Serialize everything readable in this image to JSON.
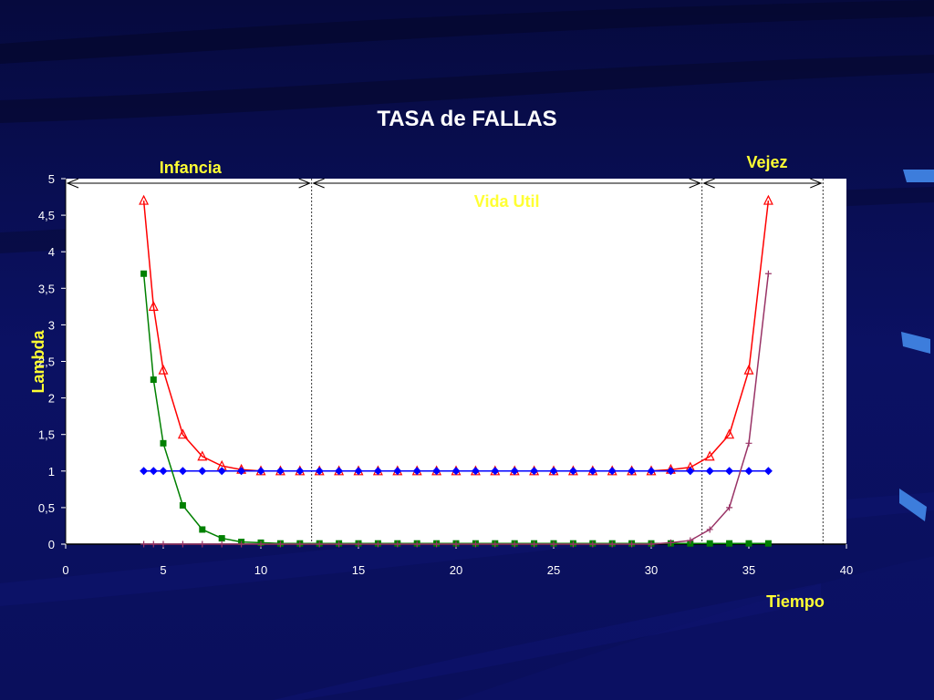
{
  "colors": {
    "background": "#0a0f5c",
    "plot_area": "#ffffff",
    "title": "#ffffff",
    "labels": "#ffff33",
    "series_total": "#ff0000",
    "series_constant": "#0000ff",
    "series_infancy": "#008000",
    "series_aging": "#993366"
  },
  "chart_data": {
    "type": "line",
    "title": "TASA de FALLAS",
    "xlabel": "Tiempo",
    "ylabel": "Lambda",
    "xlim": [
      0,
      40
    ],
    "ylim": [
      0,
      5
    ],
    "xticks": [
      0,
      5,
      10,
      15,
      20,
      25,
      30,
      35,
      40
    ],
    "xtick_labels": [
      "0",
      "5",
      "10",
      "15",
      "20",
      "25",
      "30",
      "35",
      "40"
    ],
    "yticks": [
      0,
      0.5,
      1,
      1.5,
      2,
      2.5,
      3,
      3.5,
      4,
      4.5,
      5
    ],
    "ytick_labels": [
      "0",
      "0,5",
      "1",
      "1,5",
      "2",
      "2,5",
      "3",
      "3,5",
      "4",
      "4,5",
      "5"
    ],
    "grid": false,
    "regions": [
      {
        "label": "Infancia",
        "from": 0,
        "to": 12.6
      },
      {
        "label": "Vida Util",
        "from": 12.6,
        "to": 32.6
      },
      {
        "label": "Vejez",
        "from": 32.6,
        "to": 38.8
      }
    ],
    "series": [
      {
        "marker": "triangle",
        "color": "#ff0000",
        "x": [
          4,
          4.5,
          5,
          6,
          7,
          8,
          9,
          10,
          11,
          12,
          13,
          14,
          15,
          16,
          17,
          18,
          19,
          20,
          21,
          22,
          23,
          24,
          25,
          26,
          27,
          28,
          29,
          30,
          31,
          32,
          33,
          34,
          35,
          36
        ],
        "y": [
          4.7,
          3.25,
          2.38,
          1.5,
          1.2,
          1.07,
          1.02,
          1.0,
          1.0,
          1.0,
          1.0,
          1.0,
          1.0,
          1.0,
          1.0,
          1.0,
          1.0,
          1.0,
          1.0,
          1.0,
          1.0,
          1.0,
          1.0,
          1.0,
          1.0,
          1.0,
          1.0,
          1.0,
          1.02,
          1.05,
          1.2,
          1.5,
          2.38,
          4.7
        ]
      },
      {
        "marker": "diamond",
        "color": "#0000ff",
        "x": [
          4,
          4.5,
          5,
          6,
          7,
          8,
          9,
          10,
          11,
          12,
          13,
          14,
          15,
          16,
          17,
          18,
          19,
          20,
          21,
          22,
          23,
          24,
          25,
          26,
          27,
          28,
          29,
          30,
          31,
          32,
          33,
          34,
          35,
          36
        ],
        "y": [
          1,
          1,
          1,
          1,
          1,
          1,
          1,
          1,
          1,
          1,
          1,
          1,
          1,
          1,
          1,
          1,
          1,
          1,
          1,
          1,
          1,
          1,
          1,
          1,
          1,
          1,
          1,
          1,
          1,
          1,
          1,
          1,
          1,
          1
        ]
      },
      {
        "marker": "square",
        "color": "#008000",
        "x": [
          4,
          4.5,
          5,
          6,
          7,
          8,
          9,
          10,
          11,
          12,
          13,
          14,
          15,
          16,
          17,
          18,
          19,
          20,
          21,
          22,
          23,
          24,
          25,
          26,
          27,
          28,
          29,
          30,
          31,
          32,
          33,
          34,
          35,
          36
        ],
        "y": [
          3.7,
          2.25,
          1.38,
          0.53,
          0.2,
          0.08,
          0.03,
          0.02,
          0.01,
          0.01,
          0.01,
          0.01,
          0.01,
          0.01,
          0.01,
          0.01,
          0.01,
          0.01,
          0.01,
          0.01,
          0.01,
          0.01,
          0.01,
          0.01,
          0.01,
          0.01,
          0.01,
          0.01,
          0.01,
          0.01,
          0.01,
          0.01,
          0.01,
          0.01
        ]
      },
      {
        "marker": "plus",
        "color": "#993366",
        "x": [
          4,
          4.5,
          5,
          6,
          7,
          8,
          9,
          10,
          11,
          12,
          13,
          14,
          15,
          16,
          17,
          18,
          19,
          20,
          21,
          22,
          23,
          24,
          25,
          26,
          27,
          28,
          29,
          30,
          31,
          32,
          33,
          34,
          35,
          36
        ],
        "y": [
          0,
          0,
          0,
          0,
          0,
          0,
          0,
          0,
          0,
          0,
          0,
          0,
          0,
          0,
          0,
          0,
          0,
          0,
          0,
          0,
          0,
          0,
          0,
          0,
          0,
          0,
          0,
          0,
          0.02,
          0.05,
          0.2,
          0.5,
          1.38,
          3.7
        ]
      }
    ]
  }
}
